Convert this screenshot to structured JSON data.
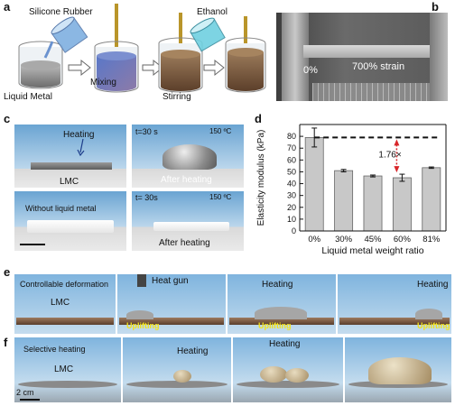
{
  "panel_a": {
    "letter": "a",
    "silicone_rubber": "Silicone Rubber",
    "ethanol": "Ethanol",
    "liquid_metal": "Liquid Metal",
    "mixing": "Mixing",
    "stirring": "Stirring"
  },
  "panel_b": {
    "letter": "b",
    "zero": "0%",
    "strain": "700% strain"
  },
  "panel_c": {
    "letter": "c",
    "heating": "Heating",
    "lmc": "LMC",
    "t1": "t=30 s",
    "temp1": "150 ºC",
    "after1": "After heating",
    "without": "Without liquid metal",
    "t2": "t= 30s",
    "temp2": "150 ºC",
    "after2": "After heating"
  },
  "panel_d": {
    "letter": "d",
    "annotation": "1.76×"
  },
  "chart_data": {
    "type": "bar",
    "categories": [
      "0%",
      "30%",
      "45%",
      "60%",
      "81%"
    ],
    "values": [
      79,
      51,
      46.5,
      45,
      53.5
    ],
    "errors": [
      8,
      1,
      0.8,
      3,
      0.6
    ],
    "xlabel": "Liquid metal weight ratio",
    "ylabel": "Elasticity modulus (kPa)",
    "ylim": [
      0,
      90
    ],
    "yticks": [
      0,
      10,
      20,
      30,
      40,
      50,
      60,
      70,
      80
    ],
    "reference_line": 79,
    "colors": {
      "bar": "#c8c8c8",
      "ref": "#111111",
      "arrow": "#d8262a"
    }
  },
  "panel_e": {
    "letter": "e",
    "controllable": "Controllable deformation",
    "lmc": "LMC",
    "heat_gun": "Heat gun",
    "uplifting1": "Uplifting",
    "heating1": "Heating",
    "uplifting2": "Uplifting",
    "heating2": "Heating",
    "uplifting3": "Uplifting"
  },
  "panel_f": {
    "letter": "f",
    "selective": "Selective heating",
    "lmc": "LMC",
    "scale": "2 cm",
    "heating1": "Heating",
    "heating2": "Heating"
  }
}
